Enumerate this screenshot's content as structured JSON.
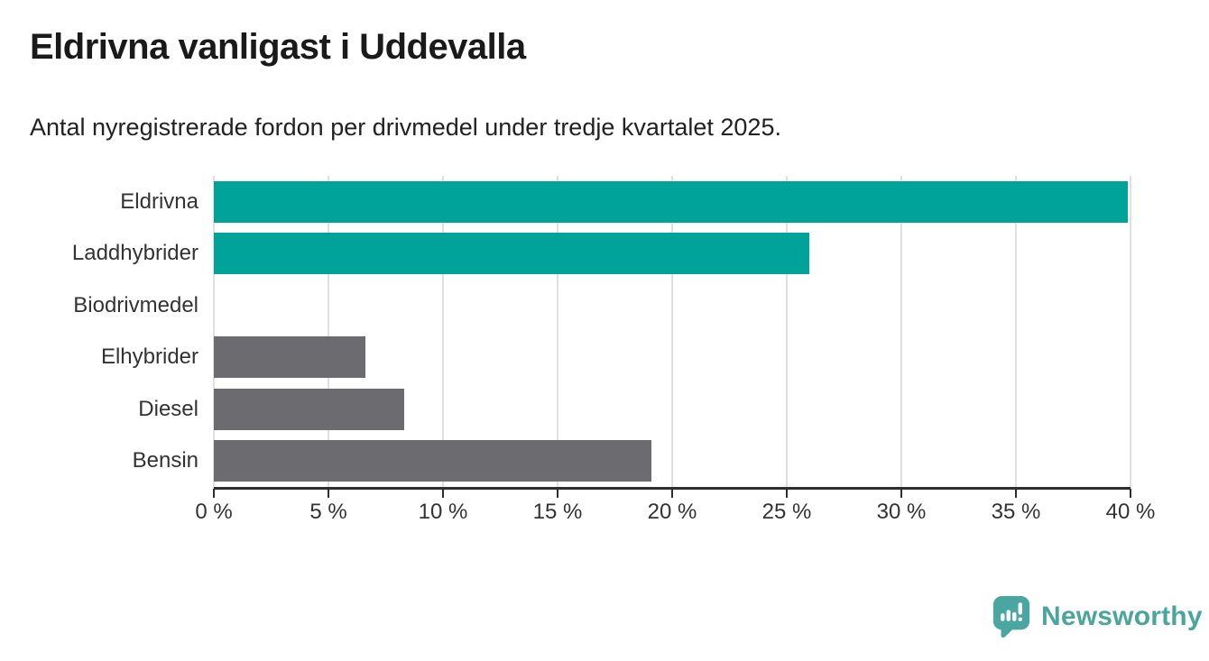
{
  "header": {
    "title": "Eldrivna vanligast i Uddevalla",
    "subtitle": "Antal nyregistrerade fordon per drivmedel under tredje kvartalet 2025."
  },
  "chart_data": {
    "type": "bar",
    "orientation": "horizontal",
    "title": "Eldrivna vanligast i Uddevalla",
    "subtitle": "Antal nyregistrerade fordon per drivmedel under tredje kvartalet 2025.",
    "categories": [
      "Eldrivna",
      "Laddhybrider",
      "Biodrivmedel",
      "Elhybrider",
      "Diesel",
      "Bensin"
    ],
    "values": [
      39.9,
      26.0,
      0,
      6.6,
      8.3,
      19.1
    ],
    "bar_colors": [
      "#00a39a",
      "#00a39a",
      "#6c6b70",
      "#6c6b70",
      "#6c6b70",
      "#6c6b70"
    ],
    "xlabel": "",
    "ylabel": "",
    "xlim": [
      0,
      40
    ],
    "x_tick_step": 5,
    "x_tick_labels": [
      "0 %",
      "5 %",
      "10 %",
      "15 %",
      "20 %",
      "25 %",
      "30 %",
      "35 %",
      "40 %"
    ],
    "grid": "vertical-only",
    "legend": "none"
  },
  "colors": {
    "highlight": "#00a39a",
    "muted": "#6c6b70",
    "axis": "#2e2e2e",
    "gridline": "#e0e0e0",
    "label_text": "#333333",
    "brand_teal": "#4aa59f"
  },
  "footer": {
    "brand": "Newsworthy",
    "logo_icon": "newsworthy-speech-bubble-bar-chart-icon"
  }
}
